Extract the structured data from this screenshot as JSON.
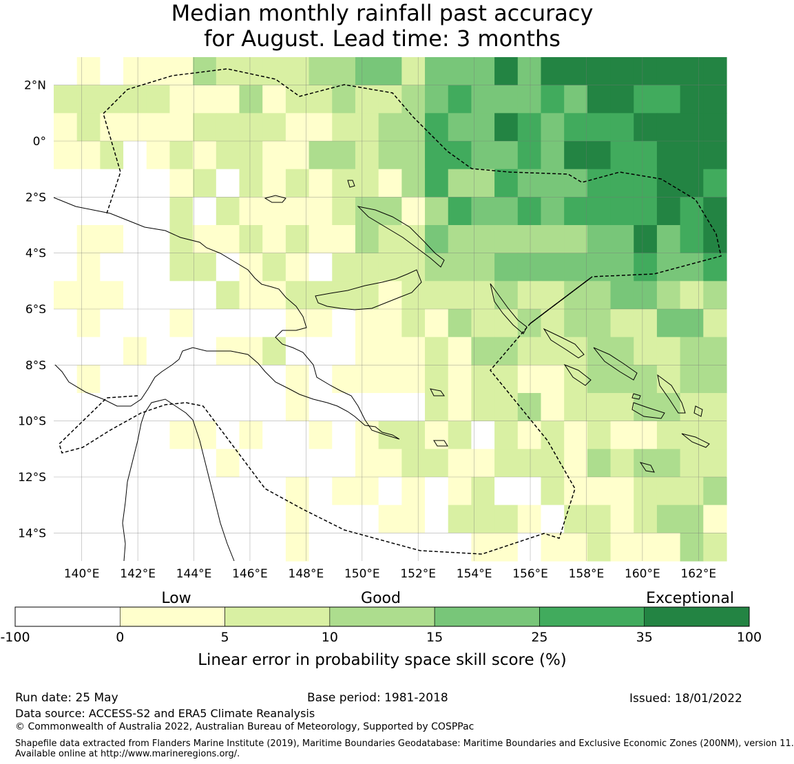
{
  "title": {
    "line1": "Median monthly rainfall past accuracy",
    "line2": "for August. Lead time: 3 months"
  },
  "map": {
    "lon_ticks": [
      "140°E",
      "142°E",
      "144°E",
      "146°E",
      "148°E",
      "150°E",
      "152°E",
      "154°E",
      "156°E",
      "158°E",
      "160°E",
      "162°E"
    ],
    "lat_ticks": [
      "2°N",
      "0°",
      "2°S",
      "4°S",
      "6°S",
      "8°S",
      "10°S",
      "12°S",
      "14°S"
    ],
    "extent": {
      "lon": [
        139,
        163
      ],
      "lat": [
        -15,
        3
      ]
    },
    "gridlines": true
  },
  "colorbar": {
    "categories": [
      "Low",
      "Good",
      "Exceptional"
    ],
    "ticks": [
      "-100",
      "0",
      "5",
      "10",
      "15",
      "25",
      "35",
      "100"
    ],
    "colors": [
      "#ffffff",
      "#ffffcc",
      "#d9f0a3",
      "#addd8e",
      "#78c679",
      "#41ab5d",
      "#238443"
    ],
    "label": "Linear error in probability space skill score (%)"
  },
  "footer": {
    "run_date": "Run date: 25 May",
    "base_period": "Base period: 1981-2018",
    "issued": "Issued: 18/01/2022",
    "data_source": "Data source: ACCESS-S2 and ERA5 Climate Reanalysis",
    "copyright": "© Commonwealth of Australia 2022, Australian Bureau of Meteorology, Supported by COSPPac",
    "shapefile_1": "Shapefile data extracted from Flanders Marine Institute (2019), Maritime Boundaries Geodatabase: Maritime Boundaries and Exclusive Economic Zones (200NM), version 11.",
    "shapefile_2": "Available online at http://www.marineregions.org/."
  }
}
